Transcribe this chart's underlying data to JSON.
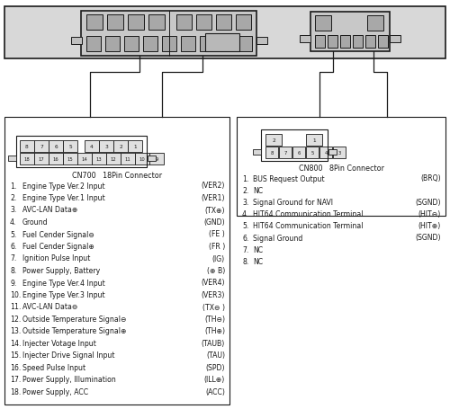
{
  "bg_color": "#ffffff",
  "tc": "#1a1a1a",
  "lc": "#1a1a1a",
  "cn700_title": "CN700   18Pin Connector",
  "cn800_title": "CN800   8Pin Connector",
  "cn700_pins": [
    {
      "num": "1.",
      "label": "Engine Type Ver.2 Input",
      "code": "(VER2)"
    },
    {
      "num": "2.",
      "label": "Engine Type Ver.1 Input",
      "code": "(VER1)"
    },
    {
      "num": "3.",
      "label": "AVC-LAN Data⊕",
      "code": "(TX⊕)"
    },
    {
      "num": "4.",
      "label": "Ground",
      "code": "(GND)"
    },
    {
      "num": "5.",
      "label": "Fuel Cender Signal⊖",
      "code": "(FE )"
    },
    {
      "num": "6.",
      "label": "Fuel Cender Signal⊕",
      "code": "(FR )"
    },
    {
      "num": "7.",
      "label": "Ignition Pulse Input",
      "code": "(IG)"
    },
    {
      "num": "8.",
      "label": "Power Supply, Battery",
      "code": "(⊕ B)"
    },
    {
      "num": "9.",
      "label": "Engine Type Ver.4 Input",
      "code": "(VER4)"
    },
    {
      "num": "10.",
      "label": "Engine Type Ver.3 Input",
      "code": "(VER3)"
    },
    {
      "num": "11.",
      "label": "AVC-LAN Data⊖",
      "code": "(TX⊖ )"
    },
    {
      "num": "12.",
      "label": "Outside Temperature Signal⊖",
      "code": "(TH⊖)"
    },
    {
      "num": "13.",
      "label": "Outside Temperature Signal⊕",
      "code": "(TH⊕)"
    },
    {
      "num": "14.",
      "label": "Injecter Votage Input",
      "code": "(TAUB)"
    },
    {
      "num": "15.",
      "label": "Injecter Drive Signal Input",
      "code": "(TAU)"
    },
    {
      "num": "16.",
      "label": "Speed Pulse Input",
      "code": "(SPD)"
    },
    {
      "num": "17.",
      "label": "Power Supply, Illumination",
      "code": "(ILL⊕)"
    },
    {
      "num": "18.",
      "label": "Power Supply, ACC",
      "code": "(ACC)"
    }
  ],
  "cn800_pins": [
    {
      "num": "1.",
      "label": "BUS Request Output",
      "code": "(BRQ)"
    },
    {
      "num": "2.",
      "label": "NC",
      "code": ""
    },
    {
      "num": "3.",
      "label": "Signal Ground for NAVI",
      "code": "(SGND)"
    },
    {
      "num": "4.",
      "label": "HIT64 Communication Terminal",
      "code": "(HIT⊖)"
    },
    {
      "num": "5.",
      "label": "HIT64 Communication Terminal",
      "code": "(HIT⊕)"
    },
    {
      "num": "6.",
      "label": "Signal Ground",
      "code": "(SGND)"
    },
    {
      "num": "7.",
      "label": "NC",
      "code": ""
    },
    {
      "num": "8.",
      "label": "NC",
      "code": ""
    }
  ]
}
